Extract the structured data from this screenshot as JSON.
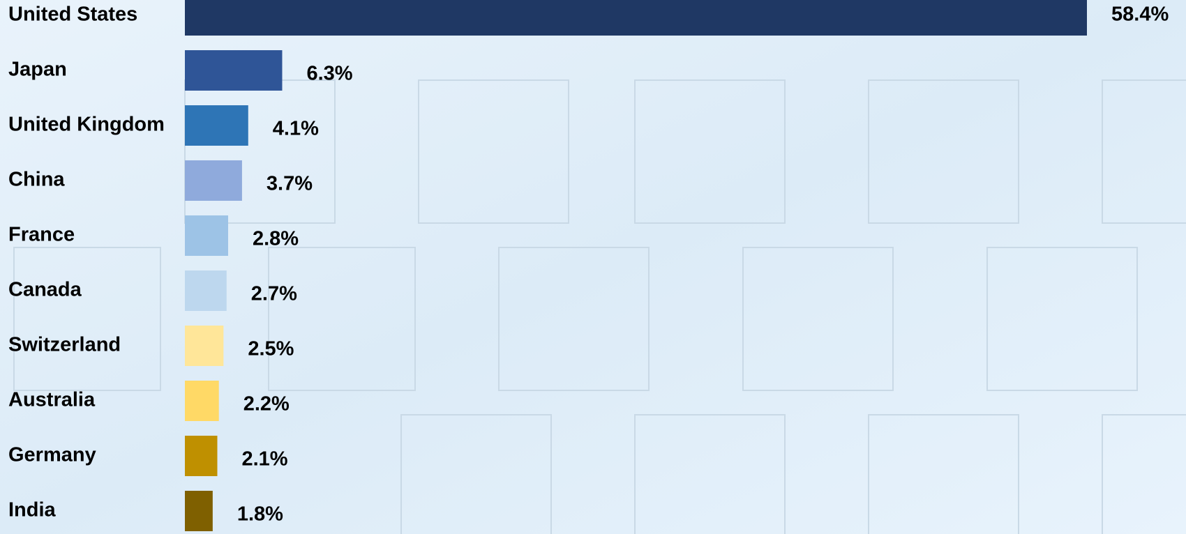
{
  "chart_data": {
    "type": "bar",
    "orientation": "horizontal",
    "categories": [
      "United States",
      "Japan",
      "United Kingdom",
      "China",
      "France",
      "Canada",
      "Switzerland",
      "Australia",
      "Germany",
      "India"
    ],
    "values": [
      58.4,
      6.3,
      4.1,
      3.7,
      2.8,
      2.7,
      2.5,
      2.2,
      2.1,
      1.8
    ],
    "value_labels": [
      "58.4%",
      "6.3%",
      "4.1%",
      "3.7%",
      "2.8%",
      "2.7%",
      "2.5%",
      "2.2%",
      "2.1%",
      "1.8%"
    ],
    "colors": [
      "#1f3864",
      "#2f5597",
      "#2e75b6",
      "#8faadc",
      "#9dc3e6",
      "#bdd7ee",
      "#ffe699",
      "#ffd966",
      "#bf9000",
      "#7f6000"
    ]
  }
}
